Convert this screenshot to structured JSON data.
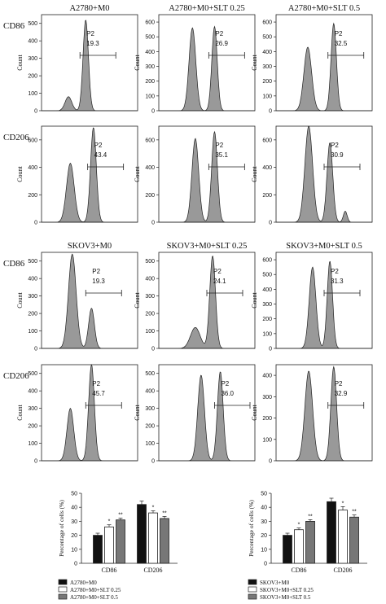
{
  "figure": {
    "panel_groups": [
      {
        "row_labels": [
          "CD86",
          "CD206"
        ],
        "column_titles": [
          "A2780+M0",
          "A2780+M0+SLT 0.25",
          "A2780+M0+SLT 0.5"
        ]
      },
      {
        "row_labels": [
          "CD86",
          "CD206"
        ],
        "column_titles": [
          "SKOV3+M0",
          "SKOV3+M0+SLT 0.25",
          "SKOV3+M0+SLT 0.5"
        ]
      }
    ],
    "gate_label": "P2",
    "histogram_ylabel": "Count",
    "bar_chart_ylabel": "Percentage of cells (%)"
  },
  "chart_data": [
    {
      "type": "area",
      "row_label": "CD86",
      "title": "A2780+M0",
      "ylabel": "Count",
      "ylim": [
        0,
        550
      ],
      "yticks": [
        0,
        100,
        200,
        300,
        400,
        500
      ],
      "gate": "P2",
      "gate_value": "19.3",
      "peaks": [
        {
          "center": 0.28,
          "height": 80,
          "width": 0.035
        },
        {
          "center": 0.46,
          "height": 520,
          "width": 0.028
        }
      ]
    },
    {
      "type": "area",
      "row_label": "CD86",
      "title": "A2780+M0+SLT 0.25",
      "ylabel": "Count",
      "ylim": [
        0,
        650
      ],
      "yticks": [
        0,
        100,
        200,
        300,
        400,
        500,
        600
      ],
      "gate": "P2",
      "gate_value": "26.9",
      "peaks": [
        {
          "center": 0.35,
          "height": 560,
          "width": 0.035
        },
        {
          "center": 0.58,
          "height": 570,
          "width": 0.028
        }
      ]
    },
    {
      "type": "area",
      "row_label": "CD86",
      "title": "A2780+M0+SLT 0.5",
      "ylabel": "Count",
      "ylim": [
        0,
        650
      ],
      "yticks": [
        0,
        100,
        200,
        300,
        400,
        500,
        600
      ],
      "gate": "P2",
      "gate_value": "32.5",
      "peaks": [
        {
          "center": 0.33,
          "height": 430,
          "width": 0.04
        },
        {
          "center": 0.6,
          "height": 590,
          "width": 0.028
        }
      ]
    },
    {
      "type": "area",
      "row_label": "CD206",
      "title": "",
      "ylabel": "Count",
      "ylim": [
        0,
        700
      ],
      "yticks": [
        0,
        200,
        400,
        600
      ],
      "gate": "P2",
      "gate_value": "43.4",
      "peaks": [
        {
          "center": 0.3,
          "height": 430,
          "width": 0.04
        },
        {
          "center": 0.54,
          "height": 690,
          "width": 0.03
        }
      ]
    },
    {
      "type": "area",
      "row_label": "CD206",
      "title": "",
      "ylabel": "Count",
      "ylim": [
        0,
        700
      ],
      "yticks": [
        0,
        200,
        400,
        600
      ],
      "gate": "P2",
      "gate_value": "35.1",
      "peaks": [
        {
          "center": 0.38,
          "height": 610,
          "width": 0.035
        },
        {
          "center": 0.58,
          "height": 660,
          "width": 0.03
        }
      ]
    },
    {
      "type": "area",
      "row_label": "CD206",
      "title": "",
      "ylabel": "Count",
      "ylim": [
        0,
        700
      ],
      "yticks": [
        0,
        200,
        400,
        600
      ],
      "gate": "P2",
      "gate_value": "30.9",
      "peaks": [
        {
          "center": 0.34,
          "height": 700,
          "width": 0.04
        },
        {
          "center": 0.56,
          "height": 580,
          "width": 0.03
        },
        {
          "center": 0.72,
          "height": 80,
          "width": 0.02
        }
      ]
    },
    {
      "type": "area",
      "row_label": "CD86",
      "title": "SKOV3+M0",
      "ylabel": "Count",
      "ylim": [
        0,
        550
      ],
      "yticks": [
        0,
        100,
        200,
        300,
        400,
        500
      ],
      "gate": "P2",
      "gate_value": "19.3",
      "peaks": [
        {
          "center": 0.32,
          "height": 540,
          "width": 0.04
        },
        {
          "center": 0.52,
          "height": 230,
          "width": 0.03
        }
      ]
    },
    {
      "type": "area",
      "row_label": "CD86",
      "title": "SKOV3+M0+SLT 0.25",
      "ylabel": "Count",
      "ylim": [
        0,
        550
      ],
      "yticks": [
        0,
        100,
        200,
        300,
        400,
        500
      ],
      "gate": "P2",
      "gate_value": "24.1",
      "peaks": [
        {
          "center": 0.38,
          "height": 120,
          "width": 0.05
        },
        {
          "center": 0.56,
          "height": 530,
          "width": 0.03
        }
      ]
    },
    {
      "type": "area",
      "row_label": "CD86",
      "title": "SKOV3+M0+SLT 0.5",
      "ylabel": "Count",
      "ylim": [
        0,
        650
      ],
      "yticks": [
        0,
        100,
        200,
        300,
        400,
        500,
        600
      ],
      "gate": "P2",
      "gate_value": "31.3",
      "peaks": [
        {
          "center": 0.38,
          "height": 550,
          "width": 0.035
        },
        {
          "center": 0.56,
          "height": 590,
          "width": 0.028
        }
      ]
    },
    {
      "type": "area",
      "row_label": "CD206",
      "title": "",
      "ylabel": "Count",
      "ylim": [
        0,
        550
      ],
      "yticks": [
        0,
        100,
        200,
        300,
        400,
        500
      ],
      "gate": "P2",
      "gate_value": "45.7",
      "peaks": [
        {
          "center": 0.3,
          "height": 300,
          "width": 0.035
        },
        {
          "center": 0.52,
          "height": 550,
          "width": 0.03
        }
      ]
    },
    {
      "type": "area",
      "row_label": "CD206",
      "title": "",
      "ylabel": "Count",
      "ylim": [
        0,
        550
      ],
      "yticks": [
        0,
        100,
        200,
        300,
        400,
        500
      ],
      "gate": "P2",
      "gate_value": "36.0",
      "peaks": [
        {
          "center": 0.44,
          "height": 490,
          "width": 0.035
        },
        {
          "center": 0.64,
          "height": 510,
          "width": 0.03
        }
      ]
    },
    {
      "type": "area",
      "row_label": "CD206",
      "title": "",
      "ylabel": "Count",
      "ylim": [
        0,
        450
      ],
      "yticks": [
        0,
        100,
        200,
        300,
        400
      ],
      "gate": "P2",
      "gate_value": "32.9",
      "peaks": [
        {
          "center": 0.34,
          "height": 420,
          "width": 0.04
        },
        {
          "center": 0.6,
          "height": 440,
          "width": 0.03
        }
      ]
    },
    {
      "type": "bar",
      "ylabel": "Percentage of cells (%)",
      "ylim": [
        0,
        50
      ],
      "yticks": [
        0,
        10,
        20,
        30,
        40,
        50
      ],
      "categories": [
        "CD86",
        "CD206"
      ],
      "series": [
        {
          "name": "A2780+M0",
          "values": [
            20,
            42
          ],
          "errors": [
            1.5,
            2.5
          ],
          "color": "#111111",
          "marks": [
            "",
            ""
          ]
        },
        {
          "name": "A2780+M0+SLT 0.25",
          "values": [
            26,
            36
          ],
          "errors": [
            1.5,
            1.5
          ],
          "color": "#ffffff",
          "marks": [
            "*",
            "*"
          ]
        },
        {
          "name": "A2780+M0+SLT 0.5",
          "values": [
            31,
            32
          ],
          "errors": [
            1.2,
            1.5
          ],
          "color": "#777777",
          "marks": [
            "**",
            "**"
          ]
        }
      ],
      "legend_placement": "bottom"
    },
    {
      "type": "bar",
      "ylabel": "Percentage of cells (%)",
      "ylim": [
        0,
        50
      ],
      "yticks": [
        0,
        10,
        20,
        30,
        40,
        50
      ],
      "categories": [
        "CD86",
        "CD206"
      ],
      "series": [
        {
          "name": "SKOV3+M0",
          "values": [
            20,
            44
          ],
          "errors": [
            1.5,
            2.5
          ],
          "color": "#111111",
          "marks": [
            "",
            ""
          ]
        },
        {
          "name": "SKOV3+M0+SLT 0.25",
          "values": [
            24,
            38
          ],
          "errors": [
            1.2,
            2.5
          ],
          "color": "#ffffff",
          "marks": [
            "*",
            "*"
          ]
        },
        {
          "name": "SKOV3+M0+SLT 0.5",
          "values": [
            30,
            33
          ],
          "errors": [
            1.2,
            1.5
          ],
          "color": "#777777",
          "marks": [
            "**",
            "**"
          ]
        }
      ],
      "legend_placement": "bottom"
    }
  ]
}
